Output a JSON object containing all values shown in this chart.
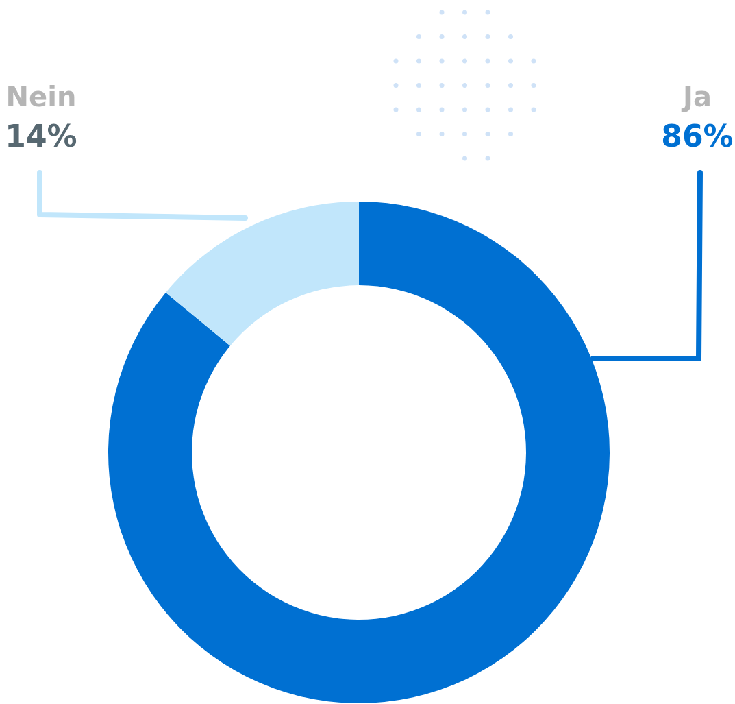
{
  "chart_data": {
    "type": "donut",
    "categories": [
      "Ja",
      "Nein"
    ],
    "values": [
      86,
      14
    ],
    "colors": [
      "#0070d2",
      "#c1e6fb"
    ],
    "value_labels": [
      "86%",
      "14%"
    ],
    "legend": false
  }
}
